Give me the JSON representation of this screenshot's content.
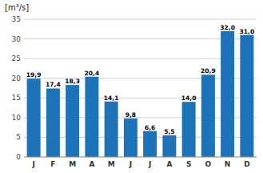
{
  "chart_data": {
    "type": "bar",
    "y_label": "[m³/s]",
    "categories": [
      "J",
      "F",
      "M",
      "A",
      "M",
      "J",
      "J",
      "A",
      "S",
      "O",
      "N",
      "D"
    ],
    "values": [
      19.9,
      17.4,
      18.3,
      20.4,
      14.1,
      9.8,
      6.6,
      5.5,
      14.0,
      20.9,
      32.0,
      31.0
    ],
    "value_labels": [
      "19,9",
      "17,4",
      "18,3",
      "20,4",
      "14,1",
      "9,8",
      "6,6",
      "5,5",
      "14,0",
      "20,9",
      "32,0",
      "31,0"
    ],
    "color": "#1e72b8",
    "ylim": [
      0,
      35
    ],
    "yticks": [
      0,
      5,
      10,
      15,
      20,
      25,
      30,
      35
    ],
    "grid": true,
    "data_labels": true
  }
}
